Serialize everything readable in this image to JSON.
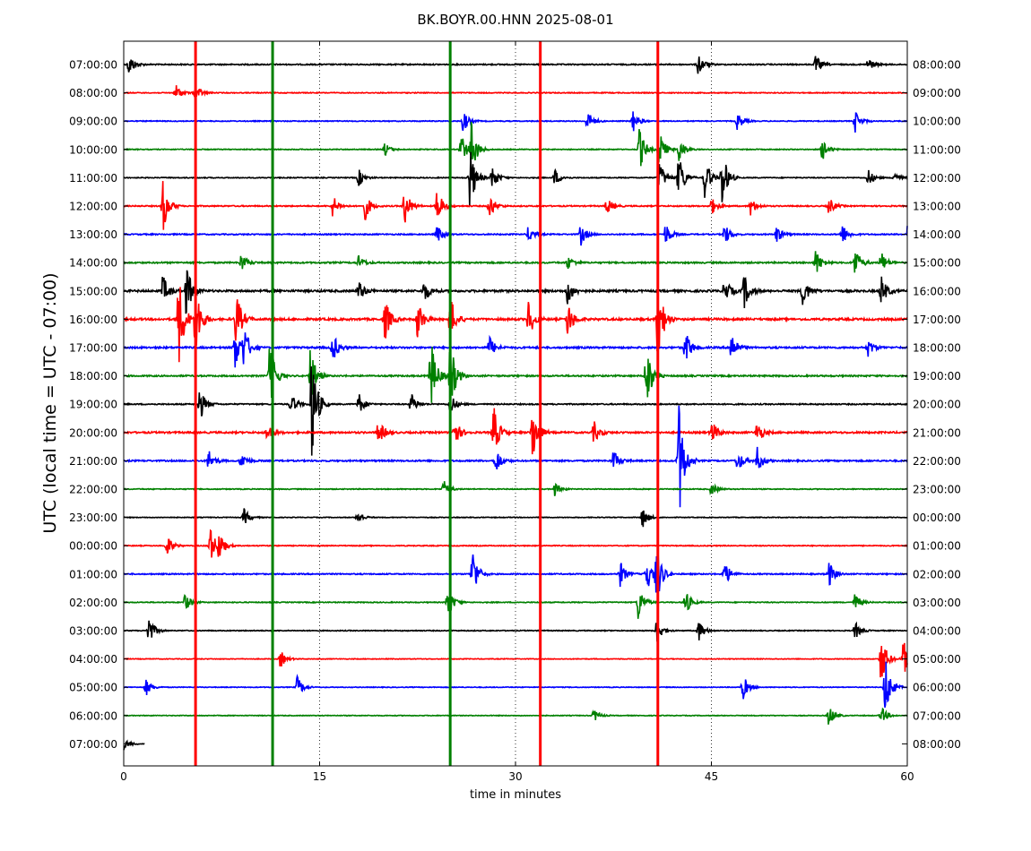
{
  "chart_data": {
    "type": "line",
    "title": "BK.BOYR.00.HNN 2025-08-01",
    "xlabel": "time in minutes",
    "ylabel": "UTC (local time = UTC - 07:00)",
    "xlim": [
      0,
      60
    ],
    "x_ticks": [
      "0",
      "15",
      "30",
      "45",
      "60"
    ],
    "x_tick_values": [
      0,
      15,
      30,
      45,
      60
    ],
    "grid": "vertical dotted at 15, 30, 45",
    "colors": [
      "#000000",
      "#ff0000",
      "#0000ff",
      "#008000"
    ],
    "left_labels": [
      "07:00:00",
      "08:00:00",
      "09:00:00",
      "10:00:00",
      "11:00:00",
      "12:00:00",
      "13:00:00",
      "14:00:00",
      "15:00:00",
      "16:00:00",
      "17:00:00",
      "18:00:00",
      "19:00:00",
      "20:00:00",
      "21:00:00",
      "22:00:00",
      "23:00:00",
      "00:00:00",
      "01:00:00",
      "02:00:00",
      "03:00:00",
      "04:00:00",
      "05:00:00",
      "06:00:00",
      "07:00:00"
    ],
    "right_labels": [
      "08:00:00",
      "09:00:00",
      "10:00:00",
      "11:00:00",
      "12:00:00",
      "13:00:00",
      "14:00:00",
      "15:00:00",
      "16:00:00",
      "17:00:00",
      "18:00:00",
      "19:00:00",
      "20:00:00",
      "21:00:00",
      "22:00:00",
      "23:00:00",
      "00:00:00",
      "01:00:00",
      "02:00:00",
      "03:00:00",
      "04:00:00",
      "05:00:00",
      "06:00:00",
      "07:00:00",
      "08:00:00"
    ],
    "series": [
      {
        "row": 0,
        "noise": 0.2,
        "events": [
          [
            0.4,
            0.5
          ],
          [
            44,
            0.5
          ],
          [
            53,
            0.4
          ],
          [
            57,
            0.3
          ]
        ]
      },
      {
        "row": 1,
        "noise": 0.15,
        "events": [
          [
            4,
            0.4
          ],
          [
            5.5,
            0.4
          ]
        ]
      },
      {
        "row": 2,
        "noise": 0.15,
        "events": [
          [
            26,
            0.5
          ],
          [
            35.5,
            0.5
          ],
          [
            39,
            0.5
          ],
          [
            47,
            0.4
          ],
          [
            56,
            0.5
          ]
        ]
      },
      {
        "row": 3,
        "noise": 0.15,
        "events": [
          [
            20,
            0.3
          ],
          [
            25.8,
            0.8
          ],
          [
            26.6,
            1.2
          ],
          [
            39.5,
            1.0
          ],
          [
            41,
            0.9
          ],
          [
            42.5,
            0.6
          ],
          [
            53.5,
            0.5
          ]
        ]
      },
      {
        "row": 4,
        "noise": 0.15,
        "events": [
          [
            18,
            0.4
          ],
          [
            26.5,
            1.5
          ],
          [
            28.2,
            0.6
          ],
          [
            33,
            0.4
          ],
          [
            41,
            0.8
          ],
          [
            42.5,
            1.2
          ],
          [
            44.5,
            1.0
          ],
          [
            45.8,
            1.4
          ],
          [
            57,
            0.4
          ],
          [
            59,
            0.3
          ]
        ]
      },
      {
        "row": 5,
        "noise": 0.2,
        "events": [
          [
            3,
            1.2
          ],
          [
            16,
            0.5
          ],
          [
            18.5,
            0.6
          ],
          [
            21.5,
            0.9
          ],
          [
            24,
            0.8
          ],
          [
            28,
            0.6
          ],
          [
            37,
            0.4
          ],
          [
            45,
            0.4
          ],
          [
            48,
            0.4
          ],
          [
            54,
            0.4
          ]
        ]
      },
      {
        "row": 6,
        "noise": 0.2,
        "events": [
          [
            24,
            0.4
          ],
          [
            31,
            0.4
          ],
          [
            35,
            0.5
          ],
          [
            41.5,
            0.5
          ],
          [
            46,
            0.5
          ],
          [
            50,
            0.4
          ],
          [
            55,
            0.5
          ],
          [
            60,
            0.5
          ]
        ]
      },
      {
        "row": 7,
        "noise": 0.25,
        "events": [
          [
            9,
            0.4
          ],
          [
            18,
            0.3
          ],
          [
            34,
            0.3
          ],
          [
            53,
            0.6
          ],
          [
            56,
            0.7
          ],
          [
            58,
            0.5
          ]
        ]
      },
      {
        "row": 8,
        "noise": 0.35,
        "events": [
          [
            3,
            0.7
          ],
          [
            4.8,
            1.2
          ],
          [
            18,
            0.5
          ],
          [
            23,
            0.5
          ],
          [
            34,
            0.6
          ],
          [
            46,
            0.6
          ],
          [
            47.5,
            0.8
          ],
          [
            52,
            0.7
          ],
          [
            58,
            0.7
          ]
        ]
      },
      {
        "row": 9,
        "noise": 0.35,
        "events": [
          [
            4.2,
            2.2
          ],
          [
            5.5,
            1.8
          ],
          [
            8.6,
            1.3
          ],
          [
            20,
            1.0
          ],
          [
            22.5,
            0.9
          ],
          [
            25,
            1.1
          ],
          [
            31,
            0.9
          ],
          [
            34,
            0.8
          ],
          [
            40.9,
            2.0
          ]
        ]
      },
      {
        "row": 10,
        "noise": 0.3,
        "events": [
          [
            8.5,
            1.0
          ],
          [
            9.2,
            0.9
          ],
          [
            16,
            0.7
          ],
          [
            28,
            0.5
          ],
          [
            43,
            0.8
          ],
          [
            46.5,
            0.8
          ],
          [
            57,
            0.4
          ]
        ]
      },
      {
        "row": 11,
        "noise": 0.25,
        "events": [
          [
            11.2,
            1.6
          ],
          [
            14.3,
            1.3
          ],
          [
            23.5,
            1.8
          ],
          [
            25,
            1.6
          ],
          [
            40,
            1.6
          ]
        ]
      },
      {
        "row": 12,
        "noise": 0.2,
        "events": [
          [
            5.8,
            0.8
          ],
          [
            12.8,
            0.5
          ],
          [
            14.4,
            2.6
          ],
          [
            18,
            0.5
          ],
          [
            22,
            0.5
          ],
          [
            25,
            0.5
          ]
        ]
      },
      {
        "row": 13,
        "noise": 0.3,
        "events": [
          [
            11,
            0.4
          ],
          [
            19.5,
            0.6
          ],
          [
            25.3,
            0.7
          ],
          [
            28.3,
            1.3
          ],
          [
            31.3,
            1.4
          ],
          [
            36,
            0.5
          ],
          [
            45,
            0.6
          ],
          [
            48.5,
            0.5
          ]
        ]
      },
      {
        "row": 14,
        "noise": 0.25,
        "events": [
          [
            6.5,
            0.5
          ],
          [
            9,
            0.4
          ],
          [
            28.5,
            0.6
          ],
          [
            37.5,
            0.5
          ],
          [
            42.5,
            2.8
          ],
          [
            47,
            0.5
          ],
          [
            48.5,
            0.6
          ]
        ]
      },
      {
        "row": 15,
        "noise": 0.15,
        "events": [
          [
            24.5,
            0.4
          ],
          [
            33,
            0.3
          ],
          [
            45,
            0.3
          ]
        ]
      },
      {
        "row": 16,
        "noise": 0.12,
        "events": [
          [
            9.2,
            0.4
          ],
          [
            17.9,
            0.3
          ],
          [
            39.7,
            0.5
          ]
        ]
      },
      {
        "row": 17,
        "noise": 0.15,
        "events": [
          [
            3.3,
            0.5
          ],
          [
            6.6,
            0.9
          ],
          [
            7.3,
            0.6
          ]
        ]
      },
      {
        "row": 18,
        "noise": 0.2,
        "events": [
          [
            26.7,
            1.2
          ],
          [
            38,
            0.6
          ],
          [
            40,
            0.9
          ],
          [
            40.8,
            1.3
          ],
          [
            46,
            0.6
          ],
          [
            54,
            0.6
          ]
        ]
      },
      {
        "row": 19,
        "noise": 0.15,
        "events": [
          [
            4.7,
            0.4
          ],
          [
            24.8,
            0.8
          ],
          [
            39.4,
            0.8
          ],
          [
            43,
            0.6
          ],
          [
            56,
            0.4
          ]
        ]
      },
      {
        "row": 20,
        "noise": 0.15,
        "events": [
          [
            1.9,
            0.7
          ],
          [
            40.8,
            0.6
          ],
          [
            44,
            0.5
          ],
          [
            56,
            0.4
          ]
        ]
      },
      {
        "row": 21,
        "noise": 0.12,
        "events": [
          [
            12,
            0.4
          ],
          [
            58,
            1.2
          ],
          [
            59.7,
            0.9
          ]
        ]
      },
      {
        "row": 22,
        "noise": 0.12,
        "events": [
          [
            1.7,
            0.4
          ],
          [
            13.3,
            0.5
          ],
          [
            47.4,
            0.6
          ],
          [
            58.3,
            1.5
          ]
        ]
      },
      {
        "row": 23,
        "noise": 0.12,
        "events": [
          [
            36,
            0.3
          ],
          [
            54,
            0.5
          ],
          [
            58,
            0.4
          ]
        ]
      },
      {
        "row": 24,
        "noise": 0.1,
        "events": [
          [
            0,
            0.3
          ]
        ],
        "end_minute": 1.6
      }
    ],
    "vertical_spikes": [
      {
        "x": 5.5,
        "color": "#ff0000",
        "from_row": 0,
        "to_row": 24
      },
      {
        "x": 11.4,
        "color": "#008000",
        "from_row": 0,
        "to_row": 24
      },
      {
        "x": 25.0,
        "color": "#008000",
        "from_row": 0,
        "to_row": 24
      },
      {
        "x": 31.9,
        "color": "#ff0000",
        "from_row": 0,
        "to_row": 24
      },
      {
        "x": 40.9,
        "color": "#ff0000",
        "from_row": 0,
        "to_row": 24
      }
    ]
  }
}
